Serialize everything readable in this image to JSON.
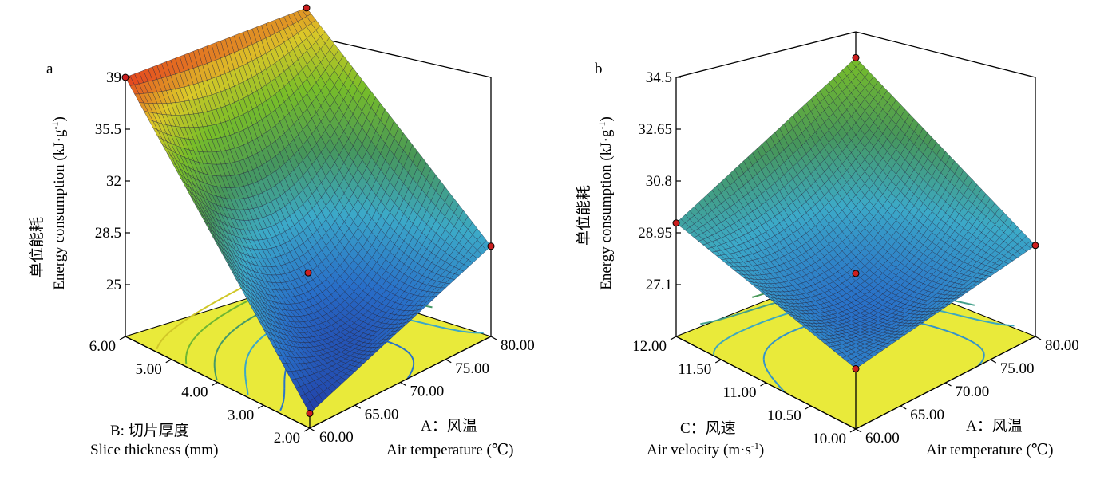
{
  "chart_data": [
    {
      "panel": "a",
      "type": "surface",
      "zlabel_cn": "单位能耗",
      "zlabel_en": "Energy consumption (kJ·g",
      "zlabel_sup": "-1",
      "zlabel_close": ")",
      "z_ticks": [
        "39",
        "35.5",
        "32",
        "28.5",
        "25"
      ],
      "zlim": [
        21.5,
        39
      ],
      "x_factor": {
        "label_cn": "A：风温",
        "label_en": "Air temperature (℃)",
        "ticks": [
          "60.00",
          "65.00",
          "70.00",
          "75.00",
          "80.00"
        ],
        "range": [
          60,
          80
        ]
      },
      "y_factor": {
        "label_cn": "B: 切片厚度",
        "label_en": "Slice thickness (mm)",
        "ticks": [
          "2.00",
          "3.00",
          "4.00",
          "5.00",
          "6.00"
        ],
        "range": [
          2,
          6
        ]
      },
      "corner_points": [
        {
          "air_temperature": 60,
          "slice_thickness": 6,
          "energy": 39.0
        },
        {
          "air_temperature": 80,
          "slice_thickness": 6,
          "energy": 37.5
        },
        {
          "air_temperature": 80,
          "slice_thickness": 2,
          "energy": 27.6
        },
        {
          "air_temperature": 60,
          "slice_thickness": 2,
          "energy": 22.5
        }
      ],
      "center_point": {
        "air_temperature": 70,
        "slice_thickness": 4,
        "energy": 25.8
      }
    },
    {
      "panel": "b",
      "type": "surface",
      "zlabel_cn": "单位能耗",
      "zlabel_en": "Energy consumption (kJ·g",
      "zlabel_sup": "-1",
      "zlabel_close": ")",
      "z_ticks": [
        "34.5",
        "32.65",
        "30.8",
        "28.95",
        "27.1"
      ],
      "zlim": [
        25.25,
        34.5
      ],
      "x_factor": {
        "label_cn": "A：风温",
        "label_en": "Air temperature (℃)",
        "ticks": [
          "60.00",
          "65.00",
          "70.00",
          "75.00",
          "80.00"
        ],
        "range": [
          60,
          80
        ]
      },
      "y_factor": {
        "label_cn": "C：风速",
        "label_en": "Air velocity (m·s",
        "label_sup": "-1",
        "label_close": ")",
        "ticks": [
          "10.00",
          "10.50",
          "11.00",
          "11.50",
          "12.00"
        ],
        "range": [
          10,
          12
        ]
      },
      "corner_points": [
        {
          "air_temperature": 60,
          "air_velocity": 12,
          "energy": 29.3
        },
        {
          "air_temperature": 80,
          "air_velocity": 12,
          "energy": 31.9
        },
        {
          "air_temperature": 80,
          "air_velocity": 10,
          "energy": 28.5
        },
        {
          "air_temperature": 60,
          "air_velocity": 10,
          "energy": 27.4
        }
      ],
      "center_point": {
        "air_temperature": 70,
        "air_velocity": 11,
        "energy": 27.5
      }
    }
  ],
  "panel_labels": [
    "a",
    "b"
  ],
  "colors": {
    "floor": "#e9ea3a",
    "mesh": "#1f1f3a",
    "point": "#cc1f1f"
  }
}
